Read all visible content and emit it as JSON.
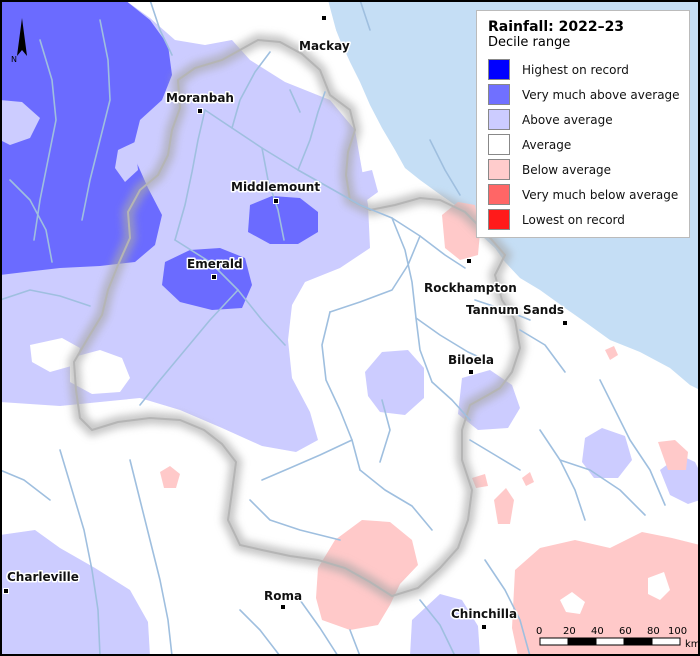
{
  "legend": {
    "title": "Rainfall: 2022–23",
    "subtitle": "Decile range",
    "items": [
      {
        "label": "Highest on record",
        "color": "#0000ff"
      },
      {
        "label": "Very much above average",
        "color": "#7070ff"
      },
      {
        "label": "Above average",
        "color": "#ccccff"
      },
      {
        "label": "Average",
        "color": "#ffffff"
      },
      {
        "label": "Below average",
        "color": "#ffcccc"
      },
      {
        "label": "Very much below average",
        "color": "#ff6666"
      },
      {
        "label": "Lowest on record",
        "color": "#ff1a1a"
      }
    ]
  },
  "towns": {
    "mackay": "Mackay",
    "moranbah": "Moranbah",
    "middlemount": "Middlemount",
    "emerald": "Emerald",
    "rockhampton": "Rockhampton",
    "tannum_sands": "Tannum Sands",
    "biloela": "Biloela",
    "charleville": "Charleville",
    "roma": "Roma",
    "chinchilla": "Chinchilla"
  },
  "north_arrow": {
    "label": "N"
  },
  "scale_bar": {
    "ticks": [
      "0",
      "20",
      "40",
      "60",
      "80",
      "100"
    ],
    "unit": "km"
  },
  "colors": {
    "ocean": "#c5def5",
    "river": "#9fbfdf",
    "boundary_shadow": "#a8a8a8"
  }
}
